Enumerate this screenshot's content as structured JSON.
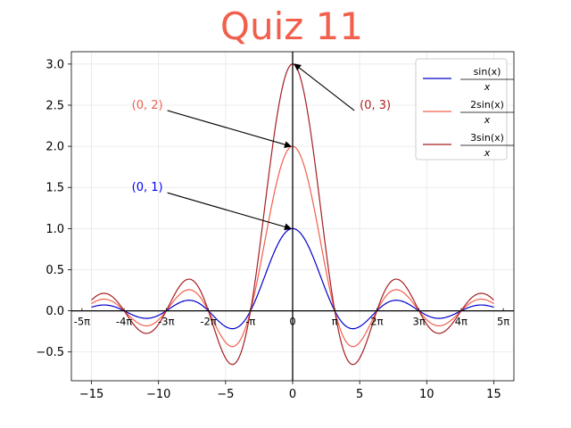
{
  "chart_data": {
    "type": "line",
    "title": "Quiz 11",
    "title_color": "#f25f4c",
    "xlim": [
      -16.5,
      16.5
    ],
    "ylim": [
      -0.85,
      3.15
    ],
    "x_ticks": [
      -15,
      -10,
      -5,
      0,
      5,
      10,
      15
    ],
    "x_tick_labels": [
      "−15",
      "−10",
      "−5",
      "0",
      "5",
      "10",
      "15"
    ],
    "y_ticks": [
      -0.5,
      0.0,
      0.5,
      1.0,
      1.5,
      2.0,
      2.5,
      3.0
    ],
    "y_tick_labels": [
      "−0.5",
      "0.0",
      "0.5",
      "1.0",
      "1.5",
      "2.0",
      "2.5",
      "3.0"
    ],
    "pi_ticks": [
      {
        "x": -15.708,
        "label": "-5π"
      },
      {
        "x": -12.566,
        "label": "-4π"
      },
      {
        "x": -9.425,
        "label": "-3π"
      },
      {
        "x": -6.283,
        "label": "-2π"
      },
      {
        "x": -3.1416,
        "label": "-π"
      },
      {
        "x": 0,
        "label": "0"
      },
      {
        "x": 3.1416,
        "label": "π"
      },
      {
        "x": 6.283,
        "label": "2π"
      },
      {
        "x": 9.425,
        "label": "3π"
      },
      {
        "x": 12.566,
        "label": "4π"
      },
      {
        "x": 15.708,
        "label": "5π"
      }
    ],
    "grid": true,
    "x_range": [
      -15,
      15
    ],
    "series": [
      {
        "name": "sin(x)/x",
        "legend_num": "sin(x)",
        "legend_den": "x",
        "amplitude": 1,
        "color": "#0000cc"
      },
      {
        "name": "2sin(x)/x",
        "legend_num": "2sin(x)",
        "legend_den": "x",
        "amplitude": 2,
        "color": "#f25f4c"
      },
      {
        "name": "3sin(x)/x",
        "legend_num": "3sin(x)",
        "legend_den": "x",
        "amplitude": 3,
        "color": "#a61e22"
      }
    ],
    "annotations": [
      {
        "text": "(0, 1)",
        "point": [
          0,
          1
        ],
        "text_at": [
          -12,
          1.5
        ],
        "color": "#0000ff"
      },
      {
        "text": "(0, 2)",
        "point": [
          0,
          2
        ],
        "text_at": [
          -12,
          2.5
        ],
        "color": "#f25f4c"
      },
      {
        "text": "(0, 3)",
        "point": [
          0,
          3
        ],
        "text_at": [
          5,
          2.5
        ],
        "color": "#b22222"
      }
    ],
    "legend_position": "upper-right"
  }
}
